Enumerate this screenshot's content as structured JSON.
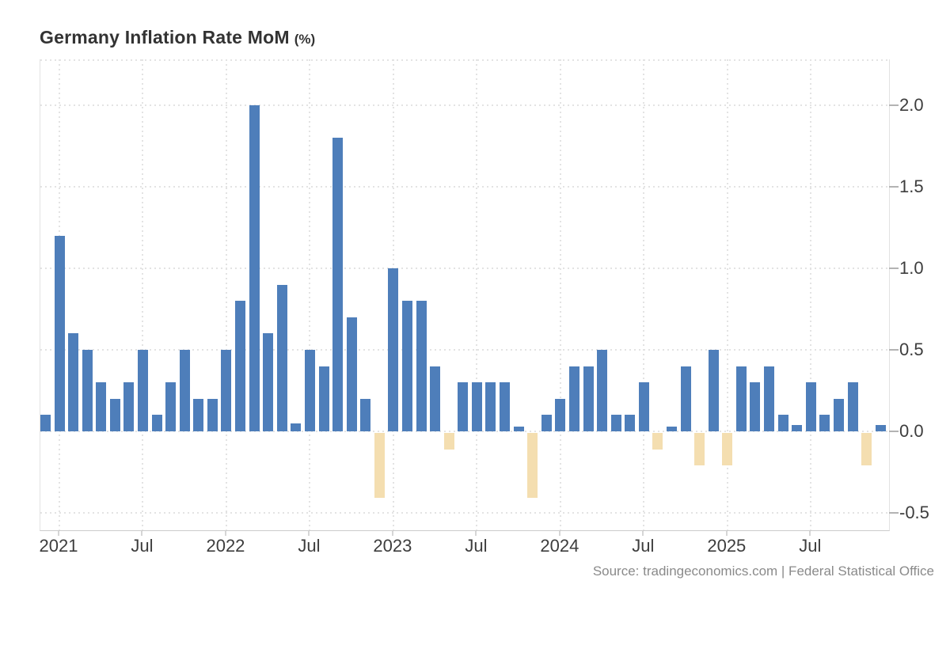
{
  "header": {
    "title": "Germany Inflation Rate MoM",
    "unit": "(%)"
  },
  "footer": {
    "source": "Source: tradingeconomics.com | Federal Statistical Office"
  },
  "colors": {
    "positive_bar": "#4e7eba",
    "negative_bar": "#f4deb0",
    "gridline": "#e3e3e3",
    "axis_border": "#e2e2e2",
    "axis_bottom": "#cccccc",
    "axis_text": "#3d3d3d",
    "title_text": "#333333",
    "source_text": "#8a8a8a"
  },
  "chart_data": {
    "type": "bar",
    "title": "Germany Inflation Rate MoM (%)",
    "xlabel": "",
    "ylabel": "",
    "grid": "dotted",
    "legend": "none",
    "ylim": [
      -0.61,
      2.28
    ],
    "y_gridline_values": [
      2.0,
      1.5,
      1.0,
      0.5,
      0.0,
      -0.5
    ],
    "y_tick_labels": [
      "2.0",
      "1.5",
      "1.0",
      "0.5",
      "0.0",
      "-0.5"
    ],
    "x_ticks": [
      {
        "label": "2021",
        "month": "2021-01"
      },
      {
        "label": "Jul",
        "month": "2021-07"
      },
      {
        "label": "2022",
        "month": "2022-01"
      },
      {
        "label": "Jul",
        "month": "2022-07"
      },
      {
        "label": "2023",
        "month": "2023-01"
      },
      {
        "label": "Jul",
        "month": "2023-07"
      },
      {
        "label": "2024",
        "month": "2024-01"
      },
      {
        "label": "Jul",
        "month": "2024-07"
      },
      {
        "label": "2025",
        "month": "2025-01"
      },
      {
        "label": "Jul",
        "month": "2025-07"
      }
    ],
    "months": [
      "2020-12",
      "2021-01",
      "2021-02",
      "2021-03",
      "2021-04",
      "2021-05",
      "2021-06",
      "2021-07",
      "2021-08",
      "2021-09",
      "2021-10",
      "2021-11",
      "2021-12",
      "2022-01",
      "2022-02",
      "2022-03",
      "2022-04",
      "2022-05",
      "2022-06",
      "2022-07",
      "2022-08",
      "2022-09",
      "2022-10",
      "2022-11",
      "2022-12",
      "2023-01",
      "2023-02",
      "2023-03",
      "2023-04",
      "2023-05",
      "2023-06",
      "2023-07",
      "2023-08",
      "2023-09",
      "2023-10",
      "2023-11",
      "2023-12",
      "2024-01",
      "2024-02",
      "2024-03",
      "2024-04",
      "2024-05",
      "2024-06",
      "2024-07",
      "2024-08",
      "2024-09",
      "2024-10",
      "2024-11",
      "2024-12",
      "2025-01",
      "2025-02",
      "2025-03",
      "2025-04",
      "2025-05",
      "2025-06",
      "2025-07",
      "2025-08",
      "2025-09",
      "2025-10",
      "2025-11",
      "2025-12"
    ],
    "values": [
      0.1,
      1.2,
      0.6,
      0.5,
      0.3,
      0.2,
      0.3,
      0.5,
      0.1,
      0.3,
      0.5,
      0.2,
      0.2,
      0.5,
      0.8,
      2.0,
      0.6,
      0.9,
      0.05,
      0.5,
      0.4,
      1.8,
      0.7,
      0.2,
      -0.4,
      1.0,
      0.8,
      0.8,
      0.4,
      -0.1,
      0.3,
      0.3,
      0.3,
      0.3,
      0.03,
      -0.4,
      0.1,
      0.2,
      0.4,
      0.4,
      0.5,
      0.1,
      0.1,
      0.3,
      -0.1,
      0.03,
      0.4,
      -0.2,
      0.5,
      -0.2,
      0.4,
      0.3,
      0.4,
      0.1,
      0.04,
      0.3,
      0.1,
      0.2,
      0.3,
      -0.2,
      0.04
    ]
  }
}
